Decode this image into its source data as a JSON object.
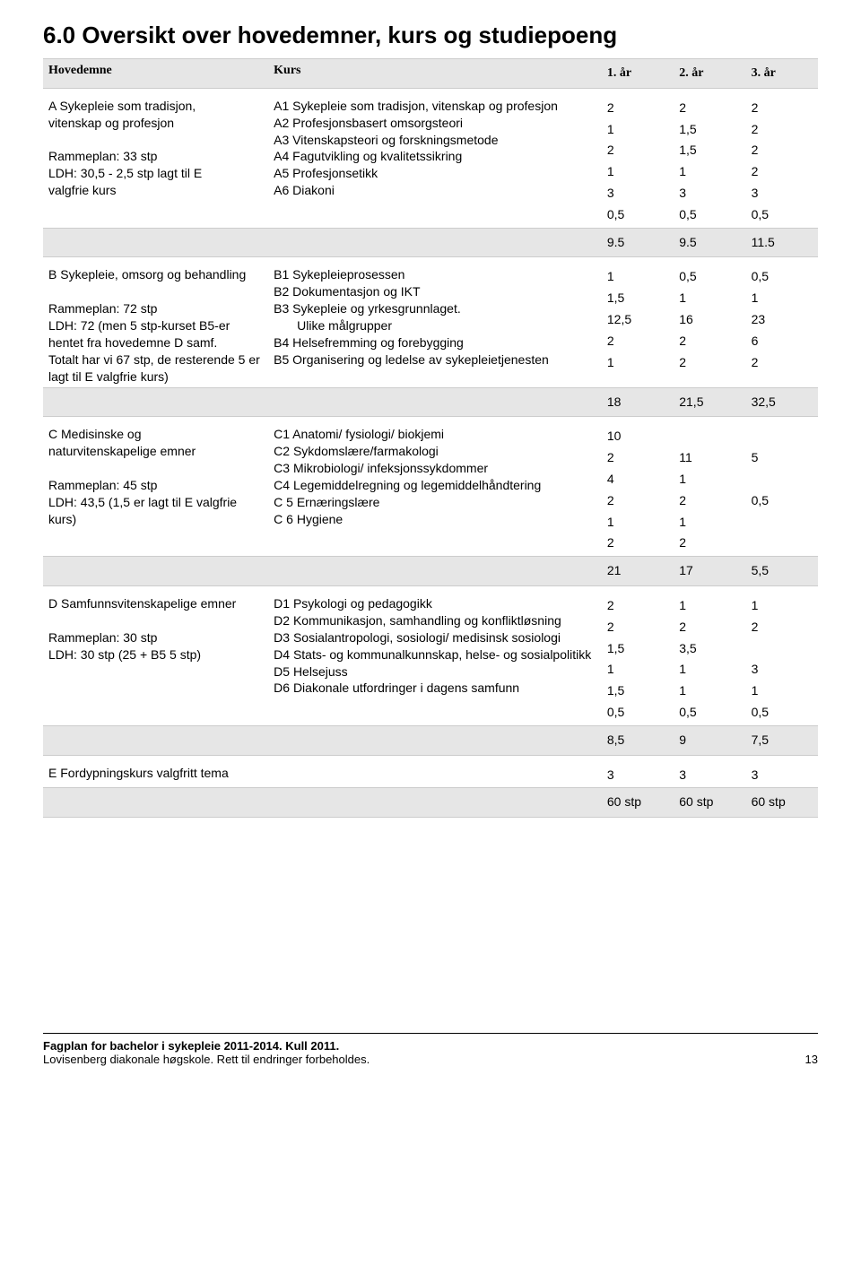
{
  "title": "6.0 Oversikt over hovedemner, kurs og studiepoeng",
  "headers": {
    "c1": "Hovedemne",
    "c2": "Kurs",
    "y1": "1. år",
    "y2": "2. år",
    "y3": "3. år"
  },
  "sections": [
    {
      "left": "A Sykepleie som tradisjon,\nvitenskap og profesjon\n\nRammeplan: 33 stp\nLDH: 30,5 - 2,5 stp lagt til E\nvalgfrie kurs",
      "rows": [
        {
          "label": "A1 Sykepleie som tradisjon, vitenskap og profesjon",
          "v": [
            "2",
            "2",
            "2"
          ]
        },
        {
          "label": "A2 Profesjonsbasert omsorgsteori",
          "v": [
            "1",
            "1,5",
            "2"
          ]
        },
        {
          "label": "A3 Vitenskapsteori og forskningsmetode",
          "v": [
            "2",
            "1,5",
            "2"
          ]
        },
        {
          "label": "A4 Fagutvikling og kvalitetssikring",
          "v": [
            "1",
            "1",
            "2"
          ]
        },
        {
          "label": "A5 Profesjonsetikk",
          "v": [
            "3",
            "3",
            "3"
          ]
        },
        {
          "label": "A6 Diakoni",
          "v": [
            "0,5",
            "0,5",
            "0,5"
          ]
        }
      ],
      "subtotal": [
        "9.5",
        "9.5",
        "11.5"
      ]
    },
    {
      "left": "B Sykepleie, omsorg og behandling\n\nRammeplan: 72 stp\nLDH: 72 (men 5 stp-kurset B5-er\nhentet fra hovedemne D samf.\nTotalt har vi 67 stp, de resterende 5 er lagt til E valgfrie kurs)",
      "rows": [
        {
          "label": "B1 Sykepleieprosessen",
          "v": [
            "1",
            "0,5",
            "0,5"
          ]
        },
        {
          "label": "B2 Dokumentasjon og IKT",
          "v": [
            "1,5",
            "1",
            "1"
          ]
        },
        {
          "label": "B3 Sykepleie og yrkesgrunnlaget.",
          "v": [
            "12,5",
            "16",
            "23"
          ],
          "sub": "Ulike målgrupper"
        },
        {
          "label": "B4 Helsefremming og forebygging",
          "v": [
            "2",
            "2",
            "6"
          ]
        },
        {
          "label": "B5 Organisering og ledelse av sykepleietjenesten",
          "v": [
            "1",
            "2",
            "2"
          ]
        }
      ],
      "subtotal": [
        "18",
        "21,5",
        "32,5"
      ]
    },
    {
      "left": "C Medisinske og\nnaturvitenskapelige emner\n\nRammeplan: 45 stp\nLDH: 43,5 (1,5 er lagt til E valgfrie kurs)",
      "rows": [
        {
          "label": "C1 Anatomi/ fysiologi/ biokjemi",
          "v": [
            "10",
            "",
            ""
          ]
        },
        {
          "label": "C2 Sykdomslære/farmakologi",
          "v": [
            "2",
            "11",
            "5"
          ]
        },
        {
          "label": "C3 Mikrobiologi/ infeksjonssykdommer",
          "v": [
            "4",
            "1",
            ""
          ]
        },
        {
          "label": "C4 Legemiddelregning og legemiddelhåndtering",
          "v": [
            "2",
            "2",
            "0,5"
          ]
        },
        {
          "label": "C 5 Ernæringslære",
          "v": [
            "1",
            "1",
            ""
          ]
        },
        {
          "label": "C 6 Hygiene",
          "v": [
            "2",
            "2",
            ""
          ]
        }
      ],
      "subtotal": [
        "21",
        "17",
        "5,5"
      ]
    },
    {
      "left": "D Samfunnsvitenskapelige emner\n\nRammeplan: 30 stp\nLDH: 30 stp (25 + B5 5 stp)",
      "rows": [
        {
          "label": "D1 Psykologi og pedagogikk",
          "v": [
            "2",
            "1",
            "1"
          ]
        },
        {
          "label": "D2 Kommunikasjon, samhandling og konfliktløsning",
          "v": [
            "2",
            "2",
            "2"
          ]
        },
        {
          "label": "D3 Sosialantropologi, sosiologi/ medisinsk sosiologi",
          "v": [
            "1,5",
            "3,5",
            ""
          ]
        },
        {
          "label": "D4 Stats- og kommunalkunnskap, helse- og sosialpolitikk",
          "v": [
            "1",
            "1",
            "3"
          ]
        },
        {
          "label": "D5 Helsejuss",
          "v": [
            "1,5",
            "1",
            "1"
          ]
        },
        {
          "label": "D6 Diakonale utfordringer i dagens samfunn",
          "v": [
            "0,5",
            "0,5",
            "0,5"
          ]
        }
      ],
      "subtotal": [
        "8,5",
        "9",
        "7,5"
      ]
    }
  ],
  "erow": {
    "label": "E Fordypningskurs valgfritt tema",
    "v": [
      "3",
      "3",
      "3"
    ]
  },
  "total": [
    "60 stp",
    "60 stp",
    "60 stp"
  ],
  "footer": {
    "line1": "Fagplan for bachelor i sykepleie 2011-2014. Kull 2011.",
    "line2": "Lovisenberg diakonale høgskole. Rett til endringer forbeholdes.",
    "page": "13"
  }
}
